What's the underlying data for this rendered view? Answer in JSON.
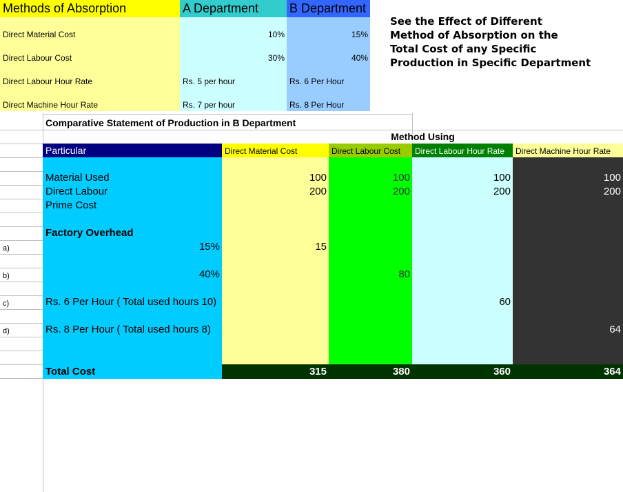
{
  "absorption": {
    "header": {
      "methods": "Methods of Absorption",
      "a_dept": "A Department",
      "b_dept": "B Department"
    },
    "rows": [
      {
        "method": "Direct Material Cost",
        "a": "10%",
        "b": "15%"
      },
      {
        "method": "Direct Labour Cost",
        "a": "30%",
        "b": "40%"
      },
      {
        "method": "Direct Labour Hour Rate",
        "a": "Rs. 5 per hour",
        "b": "Rs. 6 Per Hour"
      },
      {
        "method": "Direct Machine Hour Rate",
        "a": "Rs. 7 per hour",
        "b": "Rs. 8 Per Hour"
      }
    ]
  },
  "note": "See the Effect of Different\nMethod of Absorption on the\nTotal Cost of any Specific\nProduction in Specific Department",
  "statement": {
    "title": "Comparative Statement of Production  in B Department",
    "method_using": "Method Using",
    "particular": "Particular",
    "columns": [
      "Direct Material Cost",
      "Direct Labour Cost",
      "Direct Labour Hour Rate",
      "Direct Machine Hour Rate"
    ],
    "rows": [
      {
        "label": "",
        "particular": "",
        "values": [
          "",
          "",
          "",
          ""
        ]
      },
      {
        "label": "",
        "particular": "Material Used",
        "values": [
          "100",
          "100",
          "100",
          "100"
        ]
      },
      {
        "label": "",
        "particular": "Direct Labour",
        "values": [
          "200",
          "200",
          "200",
          "200"
        ]
      },
      {
        "label": "",
        "particular": "Prime Cost",
        "values": [
          "",
          "",
          "",
          ""
        ]
      },
      {
        "label": "",
        "particular": "",
        "values": [
          "",
          "",
          "",
          ""
        ]
      },
      {
        "label": "",
        "particular": "Factory Overhead",
        "bold": true,
        "values": [
          "",
          "",
          "",
          ""
        ]
      },
      {
        "label": "a)",
        "particular": "15%",
        "right": true,
        "values": [
          "15",
          "",
          "",
          ""
        ]
      },
      {
        "label": "",
        "particular": "",
        "values": [
          "",
          "",
          "",
          ""
        ]
      },
      {
        "label": "b)",
        "particular": "40%",
        "right": true,
        "values": [
          "",
          "80",
          "",
          ""
        ]
      },
      {
        "label": "",
        "particular": "",
        "values": [
          "",
          "",
          "",
          ""
        ]
      },
      {
        "label": "c)",
        "particular": "Rs. 6 Per Hour ( Total used hours 10)",
        "values": [
          "",
          "",
          "60",
          ""
        ]
      },
      {
        "label": "",
        "particular": "",
        "values": [
          "",
          "",
          "",
          ""
        ]
      },
      {
        "label": "d)",
        "particular": "Rs. 8 Per Hour ( Total used hours 8)",
        "values": [
          "",
          "",
          "",
          "64"
        ]
      },
      {
        "label": "",
        "particular": "",
        "values": [
          "",
          "",
          "",
          ""
        ]
      },
      {
        "label": "",
        "particular": "",
        "values": [
          "",
          "",
          "",
          ""
        ]
      }
    ],
    "total": {
      "label": "Total Cost",
      "values": [
        "315",
        "380",
        "360",
        "364"
      ]
    }
  },
  "colors": {
    "methods_header": "#ffff00",
    "a_header": "#33cccc",
    "b_header": "#3366ff",
    "methods_body": "#ffff99",
    "a_body": "#ccffff",
    "b_body": "#99ccff",
    "particular_header": "#000080",
    "particular_body": "#00ccff",
    "col_headers": [
      "#ffff00",
      "#99cc00",
      "#008000",
      "#ffff99"
    ],
    "col_bodies": [
      "#ffff99",
      "#00ff00",
      "#ccffff",
      "#333333"
    ],
    "total_bg": "#003300"
  }
}
